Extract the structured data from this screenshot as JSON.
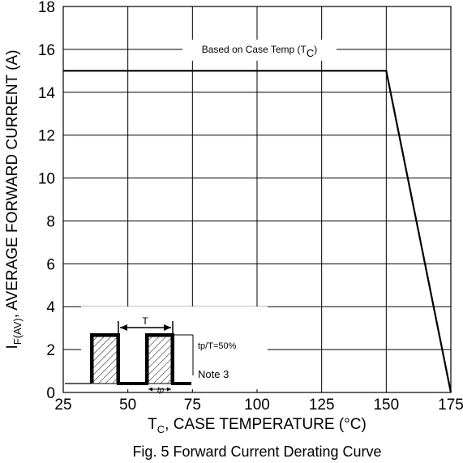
{
  "chart_data": {
    "type": "line",
    "title": "",
    "caption": "Fig. 5 Forward Current Derating Curve",
    "xlabel_main": "T",
    "xlabel_sub": "C",
    "xlabel_rest": ", CASE TEMPERATURE (°C)",
    "ylabel_main": "I",
    "ylabel_sub": "F(AV)",
    "ylabel_rest": ", AVERAGE FORWARD CURRENT (A)",
    "xlim": [
      25,
      175
    ],
    "ylim": [
      0,
      18
    ],
    "x_ticks": [
      25,
      50,
      75,
      100,
      125,
      150,
      175
    ],
    "y_ticks": [
      0,
      2,
      4,
      6,
      8,
      10,
      12,
      14,
      16,
      18
    ],
    "x_tick_labels": [
      "25",
      "50",
      "75",
      "100",
      "125",
      "150",
      "175"
    ],
    "y_tick_labels": [
      "0",
      "2",
      "4",
      "6",
      "8",
      "10",
      "12",
      "14",
      "16",
      "18"
    ],
    "grid": true,
    "series": [
      {
        "name": "Based on Case Temp (T",
        "name_sub": "C",
        "name_end": ")",
        "x": [
          25,
          150,
          175
        ],
        "y": [
          15,
          15,
          0
        ]
      }
    ],
    "inset": {
      "period_label": "T",
      "pulse_width_label": "tp",
      "duty_label": "tp/T=50%",
      "note": "Note 3"
    }
  }
}
